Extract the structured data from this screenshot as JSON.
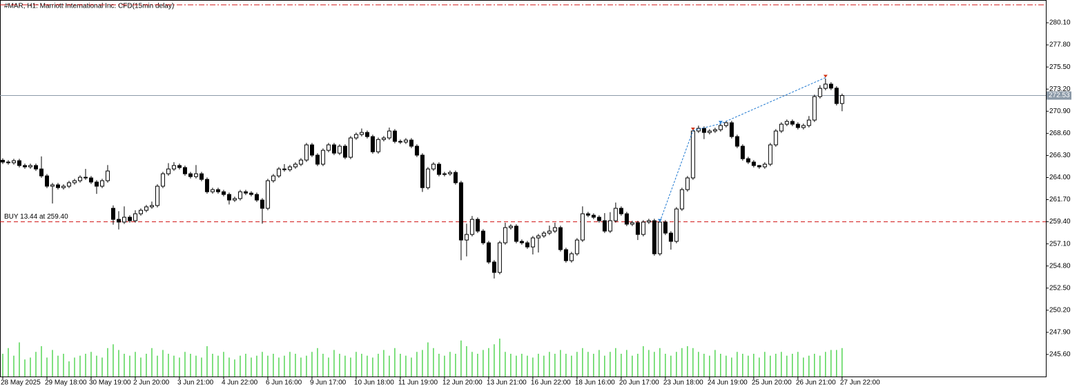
{
  "chart_data": {
    "type": "candlestick",
    "title": "#MAR, H1:  Marriott International Inc. CFD(15min delay)",
    "up_color": "#ffffff",
    "down_color": "#000000",
    "edge_color": "#000000",
    "volume_color": "#00c000",
    "ylim": [
      243.3,
      282.47
    ],
    "xlim": [
      -0.5,
      188.9
    ],
    "yticks": [
      {
        "value": 280.1,
        "label": "280.10"
      },
      {
        "value": 277.8,
        "label": "277.80"
      },
      {
        "value": 275.5,
        "label": "275.50"
      },
      {
        "value": 273.2,
        "label": "273.20"
      },
      {
        "value": 270.9,
        "label": "270.90"
      },
      {
        "value": 268.6,
        "label": "268.60"
      },
      {
        "value": 266.3,
        "label": "266.30"
      },
      {
        "value": 264,
        "label": "264.00"
      },
      {
        "value": 261.7,
        "label": "261.70"
      },
      {
        "value": 259.4,
        "label": "259.40"
      },
      {
        "value": 257.1,
        "label": "257.10"
      },
      {
        "value": 254.8,
        "label": "254.80"
      },
      {
        "value": 252.5,
        "label": "252.50"
      },
      {
        "value": 250.2,
        "label": "250.20"
      },
      {
        "value": 247.9,
        "label": "247.90"
      },
      {
        "value": 245.6,
        "label": "245.60"
      }
    ],
    "xticks": [
      {
        "value": 0,
        "label": "28 May 2025"
      },
      {
        "value": 8,
        "label": "29 May 18:00"
      },
      {
        "value": 16,
        "label": "30 May 19:00"
      },
      {
        "value": 24,
        "label": "2 Jun 20:00"
      },
      {
        "value": 32,
        "label": "3 Jun 21:00"
      },
      {
        "value": 40,
        "label": "4 Jun 22:00"
      },
      {
        "value": 48,
        "label": "6 Jun 16:00"
      },
      {
        "value": 56,
        "label": "9 Jun 17:00"
      },
      {
        "value": 64,
        "label": "10 Jun 18:00"
      },
      {
        "value": 72,
        "label": "11 Jun 19:00"
      },
      {
        "value": 80,
        "label": "12 Jun 20:00"
      },
      {
        "value": 88,
        "label": "13 Jun 21:00"
      },
      {
        "value": 96,
        "label": "16 Jun 22:00"
      },
      {
        "value": 104,
        "label": "18 Jun 16:00"
      },
      {
        "value": 112,
        "label": "20 Jun 17:00"
      },
      {
        "value": 120,
        "label": "23 Jun 18:00"
      },
      {
        "value": 128,
        "label": "24 Jun 19:00"
      },
      {
        "value": 136,
        "label": "25 Jun 20:00"
      },
      {
        "value": 144,
        "label": "26 Jun 21:00"
      },
      {
        "value": 152,
        "label": "27 Jun 22:00"
      }
    ],
    "open": [
      265.8,
      265.61,
      265.54,
      265.75,
      265.25,
      265.11,
      265.25,
      264.89,
      264.17,
      263.1,
      263.24,
      262.95,
      263.1,
      263.46,
      263.67,
      264.03,
      263.96,
      263.53,
      263.1,
      263.67,
      260.8,
      259.65,
      259.37,
      259.87,
      259.51,
      260.23,
      260.59,
      260.95,
      261.09,
      263.1,
      264.39,
      264.89,
      265.25,
      265.04,
      264.39,
      264.1,
      264.39,
      263.81,
      262.52,
      262.74,
      262.52,
      262.24,
      261.66,
      261.81,
      262.52,
      262.38,
      262.24,
      261.66,
      260.8,
      263.67,
      264.17,
      264.89,
      264.82,
      265.11,
      265.39,
      265.82,
      267.4,
      266.33,
      265.39,
      266.83,
      267.4,
      266.54,
      267.26,
      266.11,
      268.12,
      268.48,
      268.69,
      268.26,
      266.68,
      267.96,
      268.12,
      268.84,
      267.76,
      267.69,
      267.9,
      267.26,
      266.33,
      262.95,
      264.89,
      265.39,
      264.32,
      264.39,
      264.53,
      263.46,
      257.5,
      258.08,
      259.65,
      258.43,
      257.21,
      255.21,
      254.13,
      257.21,
      258.79,
      258.94,
      257.36,
      257.21,
      256.78,
      257.72,
      257.93,
      258.22,
      258.43,
      258.79,
      256.5,
      255.35,
      256.07,
      257.5,
      260.23,
      260.08,
      259.87,
      259.51,
      258.43,
      259.51,
      260.8,
      260.23,
      259.15,
      259.3,
      258.08,
      259.37,
      259.51,
      256.07,
      259.37,
      258.22,
      257.36,
      260.73,
      262.74,
      263.96,
      268.84,
      269.12,
      268.69,
      268.84,
      268.98,
      269.41,
      269.7,
      268.26,
      267.26,
      265.96,
      265.61,
      265.25,
      265.11,
      265.39,
      267.4,
      268.84,
      269.55,
      269.84,
      269.55,
      269.2,
      269.41,
      269.98,
      272.42,
      273.28,
      273.72,
      273.3,
      271.7
    ],
    "high": [
      266.0,
      265.81,
      265.95,
      265.95,
      265.45,
      265.45,
      265.45,
      266.2,
      264.37,
      263.44,
      263.44,
      263.3,
      263.66,
      263.87,
      264.23,
      264.9,
      264.16,
      263.73,
      263.87,
      265.3,
      261.1,
      260.5,
      261.0,
      260.07,
      260.6,
      260.79,
      261.15,
      261.5,
      263.3,
      264.59,
      265.5,
      265.6,
      265.45,
      265.24,
      264.59,
      265.3,
      264.59,
      264.01,
      262.94,
      262.94,
      262.72,
      262.44,
      262.01,
      262.72,
      262.72,
      262.58,
      262.44,
      261.86,
      263.87,
      264.37,
      265.09,
      265.4,
      265.31,
      265.59,
      266.02,
      267.6,
      267.6,
      266.53,
      267.03,
      267.6,
      267.6,
      267.46,
      267.46,
      268.32,
      268.68,
      269.1,
      268.89,
      268.46,
      268.16,
      268.32,
      269.2,
      269.04,
      267.96,
      268.1,
      268.1,
      267.46,
      266.53,
      265.09,
      265.59,
      265.59,
      264.59,
      264.73,
      264.73,
      263.66,
      259.2,
      260.0,
      259.85,
      258.63,
      257.41,
      255.41,
      257.41,
      259.3,
      259.14,
      259.14,
      257.56,
      257.41,
      257.92,
      258.13,
      258.42,
      259.0,
      259.3,
      258.99,
      256.7,
      256.27,
      257.7,
      261.0,
      260.43,
      260.28,
      260.07,
      260.3,
      260.4,
      261.4,
      261.0,
      260.43,
      259.5,
      259.5,
      259.57,
      259.71,
      259.71,
      259.57,
      259.57,
      258.42,
      260.93,
      262.94,
      264.16,
      269.2,
      269.4,
      269.32,
      269.04,
      269.18,
      269.61,
      269.9,
      269.9,
      268.46,
      267.46,
      266.16,
      265.81,
      265.31,
      265.59,
      267.6,
      269.04,
      269.75,
      270.04,
      270.04,
      269.75,
      269.61,
      270.4,
      272.62,
      273.6,
      274.3,
      273.92,
      273.5,
      272.73
    ],
    "low": [
      265.41,
      265.34,
      265.34,
      265.05,
      264.91,
      264.91,
      264.69,
      263.97,
      262.9,
      261.3,
      262.75,
      262.75,
      262.9,
      263.26,
      263.47,
      263.76,
      263.33,
      262.3,
      262.9,
      263.47,
      259.1,
      258.6,
      259.17,
      259.31,
      259.31,
      260.03,
      260.39,
      260.75,
      260.89,
      262.9,
      264.19,
      264.69,
      264.84,
      264.19,
      263.9,
      263.9,
      263.61,
      262.32,
      262.32,
      262.32,
      262.04,
      261.2,
      261.46,
      261.61,
      262.18,
      262.04,
      261.46,
      259.2,
      260.6,
      263.47,
      263.97,
      264.62,
      264.62,
      264.91,
      265.19,
      265.62,
      266.13,
      265.19,
      265.19,
      266.63,
      266.34,
      266.34,
      265.91,
      265.91,
      267.92,
      268.28,
      268.06,
      266.48,
      266.48,
      267.76,
      267.92,
      267.56,
      267.49,
      267.49,
      267.06,
      266.13,
      262.5,
      262.75,
      264.69,
      264.12,
      264.12,
      264.19,
      263.26,
      255.4,
      255.8,
      257.88,
      258.23,
      257.01,
      255.01,
      253.5,
      253.93,
      257.01,
      258.59,
      257.16,
      257.01,
      256.58,
      256.0,
      256.2,
      257.73,
      258.02,
      258.23,
      256.3,
      255.15,
      255.15,
      255.87,
      257.3,
      259.88,
      259.67,
      259.31,
      258.23,
      258.23,
      259.31,
      260.03,
      258.95,
      258.95,
      257.5,
      257.88,
      259.17,
      255.87,
      255.87,
      258.02,
      256.5,
      257.16,
      260.53,
      262.54,
      263.76,
      268.64,
      268.0,
      268.49,
      268.64,
      268.78,
      269.21,
      268.06,
      267.06,
      265.76,
      265.41,
      265.05,
      264.91,
      264.91,
      265.19,
      267.2,
      268.64,
      269.35,
      269.35,
      269.0,
      269.0,
      269.21,
      269.78,
      272.22,
      273.08,
      273.1,
      271.5,
      270.9
    ],
    "close": [
      265.61,
      265.54,
      265.75,
      265.25,
      265.11,
      265.25,
      264.89,
      264.17,
      263.1,
      263.24,
      262.95,
      263.1,
      263.46,
      263.67,
      264.03,
      263.96,
      263.53,
      263.1,
      263.67,
      264.68,
      259.65,
      259.37,
      259.87,
      259.51,
      260.23,
      260.59,
      260.95,
      261.09,
      263.1,
      264.39,
      264.89,
      265.25,
      265.04,
      264.39,
      264.1,
      264.39,
      263.81,
      262.52,
      262.74,
      262.52,
      262.24,
      261.66,
      261.81,
      262.52,
      262.38,
      262.24,
      261.66,
      260.8,
      263.67,
      264.17,
      264.89,
      264.82,
      265.11,
      265.39,
      265.82,
      267.4,
      266.33,
      265.39,
      266.83,
      267.4,
      266.54,
      267.26,
      266.11,
      268.12,
      268.48,
      268.69,
      268.26,
      266.68,
      267.96,
      268.12,
      268.84,
      267.76,
      267.69,
      267.9,
      267.26,
      266.33,
      262.95,
      264.89,
      265.39,
      264.32,
      264.39,
      264.53,
      263.46,
      257.5,
      258.08,
      259.65,
      258.43,
      257.21,
      255.21,
      254.13,
      257.21,
      258.79,
      258.94,
      257.36,
      257.21,
      256.78,
      257.72,
      257.93,
      258.22,
      258.43,
      258.79,
      256.5,
      255.35,
      256.07,
      257.5,
      260.23,
      260.08,
      259.87,
      259.51,
      258.43,
      259.51,
      260.8,
      260.23,
      259.15,
      259.3,
      258.08,
      259.37,
      259.51,
      256.07,
      259.37,
      258.22,
      257.36,
      260.73,
      262.74,
      263.96,
      268.84,
      269.12,
      268.69,
      268.84,
      268.98,
      269.41,
      269.7,
      268.26,
      267.26,
      265.96,
      265.61,
      265.25,
      265.11,
      265.39,
      267.4,
      268.84,
      269.55,
      269.84,
      269.55,
      269.2,
      269.41,
      269.98,
      272.42,
      273.28,
      273.72,
      273.3,
      271.7,
      272.53
    ],
    "volume": [
      1200,
      1500,
      1100,
      1800,
      900,
      1000,
      1300,
      1600,
      1000,
      1400,
      1100,
      1200,
      800,
      1000,
      1100,
      1200,
      1300,
      1100,
      1000,
      1500,
      1700,
      1400,
      1200,
      1100,
      1300,
      1000,
      1200,
      1500,
      1100,
      1400,
      1200,
      1100,
      1000,
      1300,
      1200,
      1100,
      1000,
      1600,
      1200,
      1100,
      1300,
      1000,
      900,
      1100,
      1200,
      1000,
      1100,
      1300,
      1100,
      1200,
      1000,
      1100,
      1300,
      1200,
      1000,
      1100,
      1300,
      1500,
      1200,
      1000,
      1400,
      1200,
      1100,
      1000,
      1300,
      1200,
      1100,
      1000,
      1200,
      1400,
      1100,
      1500,
      1200,
      1100,
      1000,
      1300,
      1400,
      1800,
      1500,
      1200,
      1100,
      1300,
      1200,
      1900,
      1600,
      1300,
      1200,
      1400,
      1500,
      1700,
      2000,
      1300,
      1200,
      1100,
      1200,
      1100,
      1000,
      1200,
      1100,
      1300,
      1200,
      1400,
      1200,
      1100,
      1300,
      1500,
      1300,
      1200,
      1400,
      1100,
      1300,
      1500,
      1200,
      1400,
      1100,
      1200,
      1600,
      1400,
      1300,
      1500,
      1200,
      1100,
      1300,
      1500,
      1600,
      1500,
      1300,
      1200,
      1100,
      1400,
      1200,
      1100,
      1000,
      1300,
      1200,
      1100,
      1200,
      1000,
      1300,
      1100,
      1200,
      1300,
      1100,
      1200,
      1300,
      1000,
      1100,
      1200,
      1100,
      1300,
      1400,
      1400,
      1500
    ],
    "last_price": 272.53,
    "last_price_color": "#8c9aa8",
    "levels": [
      {
        "value": 281.97,
        "color": "#d01010",
        "dash": "8 3 2 3"
      },
      {
        "value": 259.4,
        "color": "#d01010",
        "dash": "6 4"
      }
    ],
    "position_label": "BUY 13.44 at 259.40",
    "trades": [
      {
        "index": 119,
        "price": 259.4,
        "color": "#1e78d0"
      },
      {
        "index": 125,
        "price": 268.9,
        "color": "#d03010"
      },
      {
        "index": 130,
        "price": 269.6,
        "color": "#1e78d0"
      },
      {
        "index": 149,
        "price": 274.4,
        "color": "#d03010"
      }
    ],
    "trade_line_color": "#1e78d0"
  }
}
